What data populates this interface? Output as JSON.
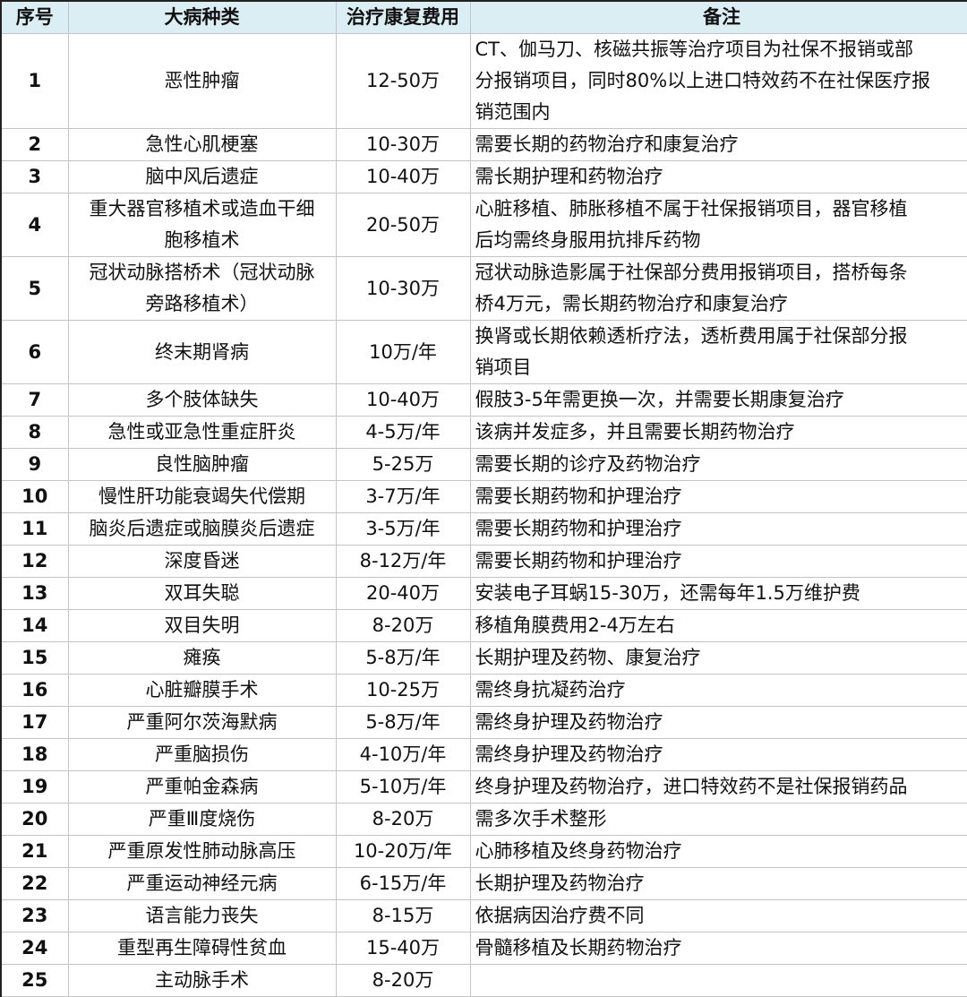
{
  "header": {
    "index": "序号",
    "disease": "大病种类",
    "cost": "治疗康复费用",
    "note": "备注"
  },
  "colors": {
    "header_bg": "#dbeef4",
    "grid": "#c4c4c4"
  },
  "rows": [
    {
      "index": "1",
      "disease": [
        "恶性肿瘤"
      ],
      "cost": "12-50万",
      "note": [
        "CT、伽马刀、核磁共振等治疗项目为社保不报销或部",
        "分报销项目，同时80%以上进口特效药不在社保医疗报",
        "销范围内"
      ]
    },
    {
      "index": "2",
      "disease": [
        "急性心肌梗塞"
      ],
      "cost": "10-30万",
      "note": [
        "需要长期的药物治疗和康复治疗"
      ]
    },
    {
      "index": "3",
      "disease": [
        "脑中风后遗症"
      ],
      "cost": "10-40万",
      "note": [
        "需长期护理和药物治疗"
      ]
    },
    {
      "index": "4",
      "disease": [
        "重大器官移植术或造血干细",
        "胞移植术"
      ],
      "cost": "20-50万",
      "note": [
        "心脏移植、肺胀移植不属于社保报销项目，器官移植",
        "后均需终身服用抗排斥药物"
      ]
    },
    {
      "index": "5",
      "disease": [
        "冠状动脉搭桥术（冠状动脉",
        "旁路移植术）"
      ],
      "cost": "10-30万",
      "note": [
        "冠状动脉造影属于社保部分费用报销项目，搭桥每条",
        "桥4万元，需长期药物治疗和康复治疗"
      ]
    },
    {
      "index": "6",
      "disease": [
        "终末期肾病"
      ],
      "cost": "10万/年",
      "note": [
        "换肾或长期依赖透析疗法，透析费用属于社保部分报",
        "销项目"
      ]
    },
    {
      "index": "7",
      "disease": [
        "多个肢体缺失"
      ],
      "cost": "10-40万",
      "note": [
        "假肢3-5年需更换一次，并需要长期康复治疗"
      ]
    },
    {
      "index": "8",
      "disease": [
        "急性或亚急性重症肝炎"
      ],
      "cost": "4-5万/年",
      "note": [
        "该病并发症多，并且需要长期药物治疗"
      ]
    },
    {
      "index": "9",
      "disease": [
        "良性脑肿瘤"
      ],
      "cost": "5-25万",
      "note": [
        "需要长期的诊疗及药物治疗"
      ]
    },
    {
      "index": "10",
      "disease": [
        "慢性肝功能衰竭失代偿期"
      ],
      "cost": "3-7万/年",
      "note": [
        "需要长期药物和护理治疗"
      ]
    },
    {
      "index": "11",
      "disease": [
        "脑炎后遗症或脑膜炎后遗症"
      ],
      "cost": "3-5万/年",
      "note": [
        "需要长期药物和护理治疗"
      ]
    },
    {
      "index": "12",
      "disease": [
        "深度昏迷"
      ],
      "cost": "8-12万/年",
      "note": [
        "需要长期药物和护理治疗"
      ]
    },
    {
      "index": "13",
      "disease": [
        "双耳失聪"
      ],
      "cost": "20-40万",
      "note": [
        "安装电子耳蜗15-30万，还需每年1.5万维护费"
      ]
    },
    {
      "index": "14",
      "disease": [
        "双目失明"
      ],
      "cost": "8-20万",
      "note": [
        "移植角膜费用2-4万左右"
      ]
    },
    {
      "index": "15",
      "disease": [
        "瘫痪"
      ],
      "cost": "5-8万/年",
      "note": [
        "长期护理及药物、康复治疗"
      ]
    },
    {
      "index": "16",
      "disease": [
        "心脏瓣膜手术"
      ],
      "cost": "10-25万",
      "note": [
        "需终身抗凝药治疗"
      ]
    },
    {
      "index": "17",
      "disease": [
        "严重阿尔茨海默病"
      ],
      "cost": "5-8万/年",
      "note": [
        "需终身护理及药物治疗"
      ]
    },
    {
      "index": "18",
      "disease": [
        "严重脑损伤"
      ],
      "cost": "4-10万/年",
      "note": [
        "需终身护理及药物治疗"
      ]
    },
    {
      "index": "19",
      "disease": [
        "严重帕金森病"
      ],
      "cost": "5-10万/年",
      "note": [
        "终身护理及药物治疗，进口特效药不是社保报销药品"
      ]
    },
    {
      "index": "20",
      "disease": [
        "严重Ⅲ度烧伤"
      ],
      "cost": "8-20万",
      "note": [
        "需多次手术整形"
      ]
    },
    {
      "index": "21",
      "disease": [
        "严重原发性肺动脉高压"
      ],
      "cost": "10-20万/年",
      "note": [
        "心肺移植及终身药物治疗"
      ]
    },
    {
      "index": "22",
      "disease": [
        "严重运动神经元病"
      ],
      "cost": "6-15万/年",
      "note": [
        "长期护理及药物治疗"
      ]
    },
    {
      "index": "23",
      "disease": [
        "语言能力丧失"
      ],
      "cost": "8-15万",
      "note": [
        "依据病因治疗费不同"
      ]
    },
    {
      "index": "24",
      "disease": [
        "重型再生障碍性贫血"
      ],
      "cost": "15-40万",
      "note": [
        "骨髓移植及长期药物治疗"
      ]
    },
    {
      "index": "25",
      "disease": [
        "主动脉手术"
      ],
      "cost": "8-20万",
      "note": []
    }
  ]
}
